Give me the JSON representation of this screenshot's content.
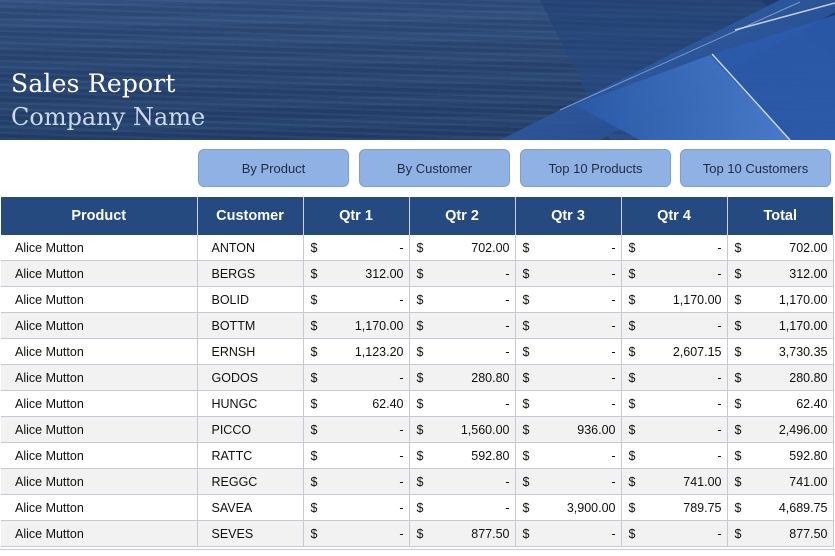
{
  "banner": {
    "title": "Sales Report",
    "company": "Company Name"
  },
  "buttons": {
    "by_product": "By Product",
    "by_customer": "By Customer",
    "top10_products": "Top 10 Products",
    "top10_customers": "Top 10 Customers"
  },
  "table": {
    "headers": {
      "product": "Product",
      "customer": "Customer",
      "q1": "Qtr 1",
      "q2": "Qtr 2",
      "q3": "Qtr 3",
      "q4": "Qtr 4",
      "total": "Total"
    },
    "currency": "$",
    "rows": [
      {
        "product": "Alice Mutton",
        "customer": "ANTON",
        "q1": "-",
        "q2": "702.00",
        "q3": "-",
        "q4": "-",
        "total": "702.00"
      },
      {
        "product": "Alice Mutton",
        "customer": "BERGS",
        "q1": "312.00",
        "q2": "-",
        "q3": "-",
        "q4": "-",
        "total": "312.00"
      },
      {
        "product": "Alice Mutton",
        "customer": "BOLID",
        "q1": "-",
        "q2": "-",
        "q3": "-",
        "q4": "1,170.00",
        "total": "1,170.00"
      },
      {
        "product": "Alice Mutton",
        "customer": "BOTTM",
        "q1": "1,170.00",
        "q2": "-",
        "q3": "-",
        "q4": "-",
        "total": "1,170.00"
      },
      {
        "product": "Alice Mutton",
        "customer": "ERNSH",
        "q1": "1,123.20",
        "q2": "-",
        "q3": "-",
        "q4": "2,607.15",
        "total": "3,730.35"
      },
      {
        "product": "Alice Mutton",
        "customer": "GODOS",
        "q1": "-",
        "q2": "280.80",
        "q3": "-",
        "q4": "-",
        "total": "280.80"
      },
      {
        "product": "Alice Mutton",
        "customer": "HUNGC",
        "q1": "62.40",
        "q2": "-",
        "q3": "-",
        "q4": "-",
        "total": "62.40"
      },
      {
        "product": "Alice Mutton",
        "customer": "PICCO",
        "q1": "-",
        "q2": "1,560.00",
        "q3": "936.00",
        "q4": "-",
        "total": "2,496.00"
      },
      {
        "product": "Alice Mutton",
        "customer": "RATTC",
        "q1": "-",
        "q2": "592.80",
        "q3": "-",
        "q4": "-",
        "total": "592.80"
      },
      {
        "product": "Alice Mutton",
        "customer": "REGGC",
        "q1": "-",
        "q2": "-",
        "q3": "-",
        "q4": "741.00",
        "total": "741.00"
      },
      {
        "product": "Alice Mutton",
        "customer": "SAVEA",
        "q1": "-",
        "q2": "-",
        "q3": "3,900.00",
        "q4": "789.75",
        "total": "4,689.75"
      },
      {
        "product": "Alice Mutton",
        "customer": "SEVES",
        "q1": "-",
        "q2": "877.50",
        "q3": "-",
        "q4": "-",
        "total": "877.50"
      }
    ]
  },
  "colors": {
    "header_bg": "#254a80",
    "button_bg": "#8fb1e3",
    "banner_bg": "#284674"
  }
}
